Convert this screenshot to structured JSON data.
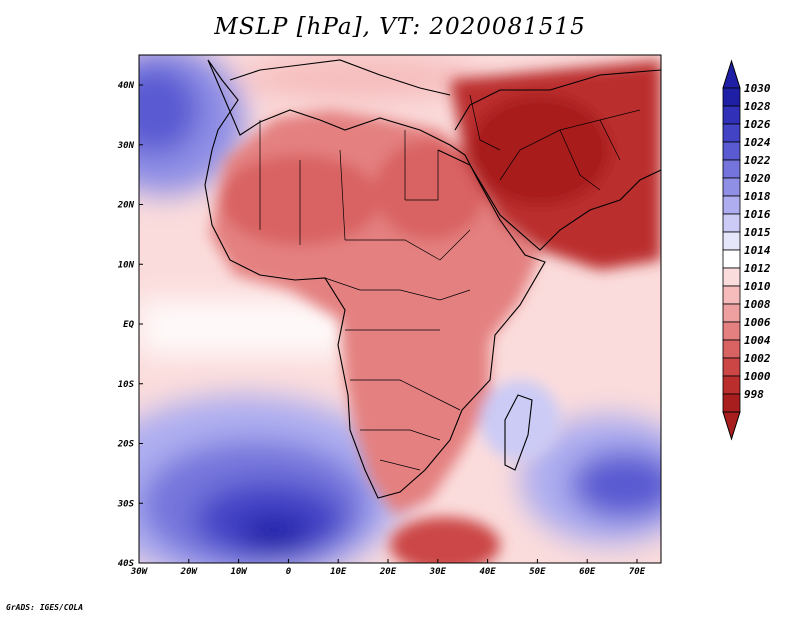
{
  "title": "MSLP [hPa], VT: 2020081515",
  "credit": "GrADS: IGES/COLA",
  "x_ticks": [
    "30W",
    "20W",
    "10W",
    "0",
    "10E",
    "20E",
    "30E",
    "40E",
    "50E",
    "60E",
    "70E"
  ],
  "y_ticks": [
    "40N",
    "30N",
    "20N",
    "10N",
    "EQ",
    "10S",
    "20S",
    "30S",
    "40S"
  ],
  "colorbar": {
    "labels": [
      "1030",
      "1028",
      "1026",
      "1024",
      "1022",
      "1020",
      "1018",
      "1016",
      "1015",
      "1014",
      "1012",
      "1010",
      "1008",
      "1006",
      "1004",
      "1002",
      "1000",
      "998"
    ],
    "colors": [
      "#1f1fa6",
      "#3030b8",
      "#4343c6",
      "#5a5ad2",
      "#7474dc",
      "#8f8fe6",
      "#adadf0",
      "#cbcbf6",
      "#e6e6fb",
      "#ffffff",
      "#fbdcdc",
      "#f6bcbc",
      "#eea0a0",
      "#e48080",
      "#d96262",
      "#cc4646",
      "#bb2e2e",
      "#a81e1e"
    ]
  },
  "colors": {
    "sea_blue_deep": "#1f1fa6",
    "land_red": "#e48080",
    "deep_red": "#a81e1e"
  }
}
